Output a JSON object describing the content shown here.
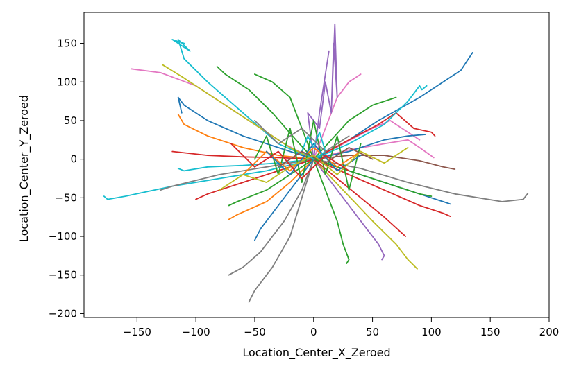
{
  "chart_data": {
    "type": "line",
    "title": "",
    "xlabel": "Location_Center_X_Zeroed",
    "ylabel": "Location_Center_Y_Zeroed",
    "xlim": [
      -195,
      200
    ],
    "ylim": [
      -205,
      190
    ],
    "xticks": [
      -150,
      -100,
      -50,
      0,
      50,
      100,
      150,
      200
    ],
    "yticks": [
      150,
      100,
      50,
      0,
      -50,
      -100,
      -150,
      -200
    ],
    "xtick_labels": [
      "−150",
      "−100",
      "−50",
      "0",
      "50",
      "100",
      "150",
      "200"
    ],
    "ytick_labels": [
      "150",
      "100",
      "50",
      "0",
      "−50",
      "−100",
      "−150",
      "−200"
    ],
    "grid": false,
    "legend": "none",
    "series_note_colors": [
      "#1f77b4",
      "#ff7f0e",
      "#2ca02c",
      "#d62728",
      "#9467bd",
      "#8c564b",
      "#e377c2",
      "#7f7f7f",
      "#bcbd22",
      "#17becf"
    ],
    "series": [
      {
        "color": "#1f77b4",
        "x": [
          0,
          25,
          55,
          90,
          110,
          125,
          135
        ],
        "y": [
          0,
          20,
          50,
          80,
          100,
          115,
          138
        ]
      },
      {
        "color": "#17becf",
        "x": [
          0,
          -30,
          -60,
          -90,
          -110,
          -115,
          -105,
          -120,
          -110
        ],
        "y": [
          0,
          20,
          60,
          100,
          130,
          155,
          140,
          155,
          150
        ]
      },
      {
        "color": "#e377c2",
        "x": [
          0,
          -25,
          -60,
          -100,
          -130,
          -155
        ],
        "y": [
          0,
          20,
          55,
          95,
          112,
          117
        ]
      },
      {
        "color": "#bcbd22",
        "x": [
          0,
          -20,
          -50,
          -85,
          -110,
          -128
        ],
        "y": [
          0,
          15,
          45,
          80,
          105,
          122
        ]
      },
      {
        "color": "#2ca02c",
        "x": [
          0,
          -15,
          -35,
          -55,
          -75,
          -82
        ],
        "y": [
          0,
          25,
          60,
          90,
          110,
          120
        ]
      },
      {
        "color": "#1f77b4",
        "x": [
          0,
          -30,
          -60,
          -90,
          -110,
          -115,
          -112
        ],
        "y": [
          0,
          15,
          30,
          50,
          70,
          80,
          60
        ]
      },
      {
        "color": "#ff7f0e",
        "x": [
          0,
          -30,
          -60,
          -90,
          -110,
          -115
        ],
        "y": [
          0,
          5,
          15,
          30,
          45,
          58
        ]
      },
      {
        "color": "#d62728",
        "x": [
          0,
          -30,
          -60,
          -90,
          -120
        ],
        "y": [
          0,
          2,
          3,
          5,
          10
        ]
      },
      {
        "color": "#17becf",
        "x": [
          0,
          -30,
          -60,
          -90,
          -110,
          -115
        ],
        "y": [
          0,
          -5,
          -8,
          -10,
          -15,
          -12
        ]
      },
      {
        "color": "#17becf",
        "x": [
          0,
          -40,
          -80,
          -120,
          -160,
          -175,
          -178
        ],
        "y": [
          0,
          -15,
          -25,
          -35,
          -48,
          -52,
          -48
        ]
      },
      {
        "color": "#7f7f7f",
        "x": [
          0,
          -40,
          -80,
          -120,
          -130
        ],
        "y": [
          0,
          -10,
          -20,
          -35,
          -40
        ]
      },
      {
        "color": "#d62728",
        "x": [
          0,
          -30,
          -60,
          -90,
          -100
        ],
        "y": [
          0,
          -15,
          -30,
          -45,
          -52
        ]
      },
      {
        "color": "#2ca02c",
        "x": [
          0,
          -20,
          -40,
          -65,
          -72
        ],
        "y": [
          0,
          -20,
          -40,
          -55,
          -60
        ]
      },
      {
        "color": "#ff7f0e",
        "x": [
          0,
          -20,
          -40,
          -65,
          -72
        ],
        "y": [
          0,
          -30,
          -55,
          -72,
          -78
        ]
      },
      {
        "color": "#7f7f7f",
        "x": [
          0,
          -10,
          -25,
          -45,
          -60,
          -72
        ],
        "y": [
          0,
          -40,
          -80,
          -120,
          -140,
          -150
        ]
      },
      {
        "color": "#7f7f7f",
        "x": [
          0,
          -10,
          -20,
          -35,
          -50,
          -55
        ],
        "y": [
          0,
          -50,
          -100,
          -140,
          -170,
          -185
        ]
      },
      {
        "color": "#1f77b4",
        "x": [
          0,
          -15,
          -30,
          -45,
          -50
        ],
        "y": [
          0,
          -30,
          -60,
          -90,
          -105
        ]
      },
      {
        "color": "#2ca02c",
        "x": [
          0,
          10,
          20,
          25,
          30,
          28
        ],
        "y": [
          0,
          -40,
          -80,
          -110,
          -130,
          -135
        ]
      },
      {
        "color": "#9467bd",
        "x": [
          0,
          20,
          40,
          55,
          60,
          58
        ],
        "y": [
          0,
          -40,
          -80,
          -110,
          -125,
          -130
        ]
      },
      {
        "color": "#bcbd22",
        "x": [
          0,
          25,
          50,
          70,
          80,
          88
        ],
        "y": [
          0,
          -40,
          -80,
          -110,
          -130,
          -142
        ]
      },
      {
        "color": "#d62728",
        "x": [
          0,
          20,
          40,
          60,
          78
        ],
        "y": [
          0,
          -25,
          -50,
          -75,
          -100
        ]
      },
      {
        "color": "#d62728",
        "x": [
          0,
          30,
          60,
          90,
          110,
          116
        ],
        "y": [
          0,
          -20,
          -40,
          -60,
          -70,
          -74
        ]
      },
      {
        "color": "#1f77b4",
        "x": [
          0,
          30,
          60,
          90,
          110,
          116
        ],
        "y": [
          0,
          -15,
          -30,
          -45,
          -55,
          -58
        ]
      },
      {
        "color": "#7f7f7f",
        "x": [
          0,
          40,
          80,
          120,
          160,
          178,
          182
        ],
        "y": [
          0,
          -12,
          -30,
          -45,
          -55,
          -52,
          -44
        ]
      },
      {
        "color": "#2ca02c",
        "x": [
          0,
          30,
          60,
          90,
          100
        ],
        "y": [
          0,
          -15,
          -30,
          -45,
          -48
        ]
      },
      {
        "color": "#8c564b",
        "x": [
          0,
          30,
          60,
          90,
          110,
          120
        ],
        "y": [
          0,
          5,
          5,
          -2,
          -10,
          -13
        ]
      },
      {
        "color": "#e377c2",
        "x": [
          0,
          30,
          60,
          80,
          90,
          102
        ],
        "y": [
          0,
          12,
          20,
          25,
          15,
          2
        ]
      },
      {
        "color": "#e377c2",
        "x": [
          0,
          25,
          50,
          65,
          75,
          90
        ],
        "y": [
          0,
          20,
          40,
          50,
          40,
          25
        ]
      },
      {
        "color": "#d62728",
        "x": [
          0,
          30,
          55,
          70,
          85,
          100,
          103
        ],
        "y": [
          0,
          25,
          45,
          60,
          40,
          35,
          30
        ]
      },
      {
        "color": "#1f77b4",
        "x": [
          0,
          30,
          60,
          80,
          95
        ],
        "y": [
          0,
          10,
          25,
          30,
          32
        ]
      },
      {
        "color": "#17becf",
        "x": [
          0,
          30,
          60,
          80,
          90,
          92,
          96
        ],
        "y": [
          0,
          20,
          45,
          75,
          95,
          90,
          95
        ]
      },
      {
        "color": "#e377c2",
        "x": [
          0,
          10,
          20,
          30,
          40
        ],
        "y": [
          0,
          40,
          80,
          100,
          110
        ]
      },
      {
        "color": "#2ca02c",
        "x": [
          0,
          15,
          30,
          50,
          70
        ],
        "y": [
          0,
          25,
          50,
          70,
          80
        ]
      },
      {
        "color": "#9467bd",
        "x": [
          0,
          -5,
          5,
          10,
          15,
          18,
          20,
          17,
          15
        ],
        "y": [
          0,
          60,
          40,
          100,
          60,
          175,
          80,
          150,
          60
        ]
      },
      {
        "color": "#9467bd",
        "x": [
          0,
          5,
          10,
          13
        ],
        "y": [
          0,
          60,
          110,
          140
        ]
      },
      {
        "color": "#2ca02c",
        "x": [
          0,
          -10,
          -20,
          -35,
          -50
        ],
        "y": [
          0,
          40,
          80,
          100,
          110
        ]
      },
      {
        "color": "#2ca02c",
        "x": [
          -50,
          -40,
          -30,
          -20,
          -10,
          0,
          10,
          20,
          30,
          40
        ],
        "y": [
          0,
          30,
          -20,
          40,
          -30,
          50,
          -20,
          30,
          -40,
          20
        ]
      },
      {
        "color": "#ff7f0e",
        "x": [
          -60,
          -40,
          -20,
          0,
          20,
          40,
          60
        ],
        "y": [
          -20,
          10,
          -15,
          15,
          -10,
          10,
          -5
        ]
      },
      {
        "color": "#1f77b4",
        "x": [
          -40,
          -20,
          0,
          20,
          40
        ],
        "y": [
          10,
          -20,
          20,
          -15,
          5
        ]
      },
      {
        "color": "#17becf",
        "x": [
          -10,
          -5,
          0,
          5,
          10,
          0,
          -10
        ],
        "y": [
          10,
          30,
          15,
          35,
          10,
          0,
          10
        ]
      },
      {
        "color": "#8c564b",
        "x": [
          -30,
          -10,
          10,
          30,
          50
        ],
        "y": [
          -10,
          10,
          -5,
          15,
          0
        ]
      },
      {
        "color": "#bcbd22",
        "x": [
          -80,
          -60,
          -40,
          -20,
          0,
          20,
          40,
          60,
          80
        ],
        "y": [
          -40,
          -20,
          -30,
          -10,
          5,
          -20,
          10,
          -5,
          15
        ]
      },
      {
        "color": "#7f7f7f",
        "x": [
          -50,
          -30,
          -10,
          10,
          30
        ],
        "y": [
          50,
          20,
          40,
          10,
          30
        ]
      },
      {
        "color": "#d62728",
        "x": [
          -70,
          -50,
          -30,
          -10,
          10,
          30
        ],
        "y": [
          20,
          -10,
          10,
          -25,
          5,
          -15
        ]
      }
    ]
  }
}
